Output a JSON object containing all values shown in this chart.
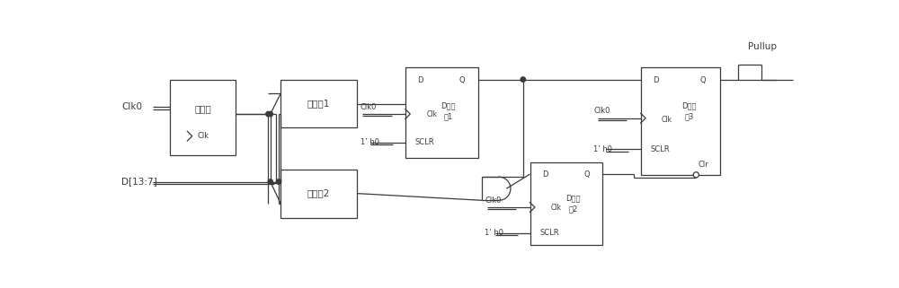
{
  "bg": "#ffffff",
  "lc": "#3a3a3a",
  "lw": 0.9,
  "fs_main": 7.5,
  "fs_small": 6.5,
  "fs_pin": 6.0,
  "counter_label": "计数器",
  "comp1_label": "比较器1",
  "comp2_label": "比较器2",
  "dff1_top": "D触发",
  "dff1_bot": "器1",
  "dff2_top": "D触发",
  "dff2_bot": "器2",
  "dff3_top": "D触发",
  "dff3_bot": "器3",
  "pullup": "Pullup",
  "clk0": "Clk0",
  "d_label": "D[13:7]",
  "h0": "1’ h0",
  "clr": "Clr",
  "D": "D",
  "Q": "Q",
  "Clk": "Clk",
  "SCLR": "SCLR"
}
